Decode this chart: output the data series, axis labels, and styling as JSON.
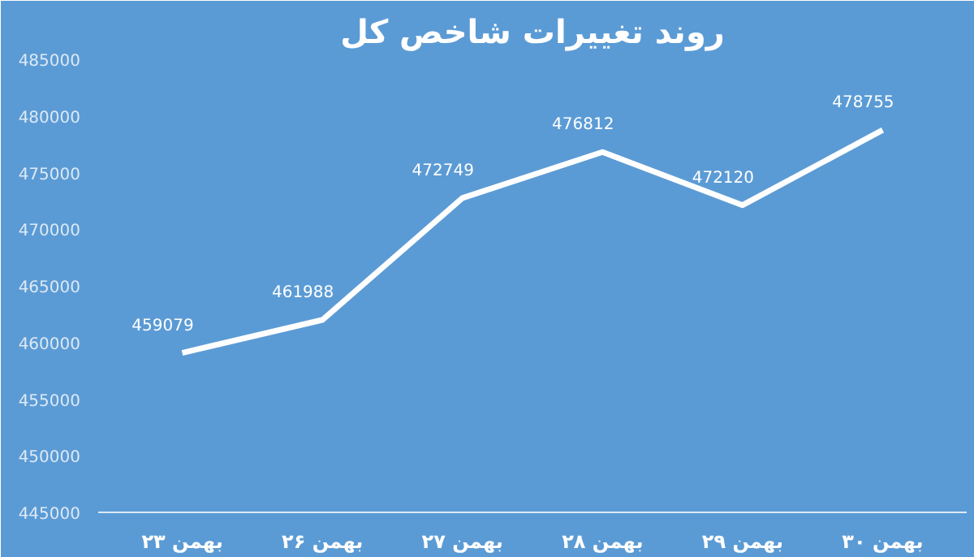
{
  "chart_data": {
    "type": "line",
    "title": "روند تغییرات شاخص کل",
    "categories": [
      "۲۳ بهمن",
      "۲۶ بهمن",
      "۲۷ بهمن",
      "۲۸ بهمن",
      "۲۹ بهمن",
      "۳۰ بهمن"
    ],
    "series": [
      {
        "color": "#ffffff",
        "values": [
          459079,
          461988,
          472749,
          476812,
          472120,
          478755
        ]
      }
    ],
    "ylim": [
      445000,
      485000
    ],
    "yticks": [
      445000,
      450000,
      455000,
      460000,
      465000,
      470000,
      475000,
      480000,
      485000
    ],
    "data_labels": true,
    "grid": false,
    "marker": "none",
    "line_style": "solid"
  }
}
